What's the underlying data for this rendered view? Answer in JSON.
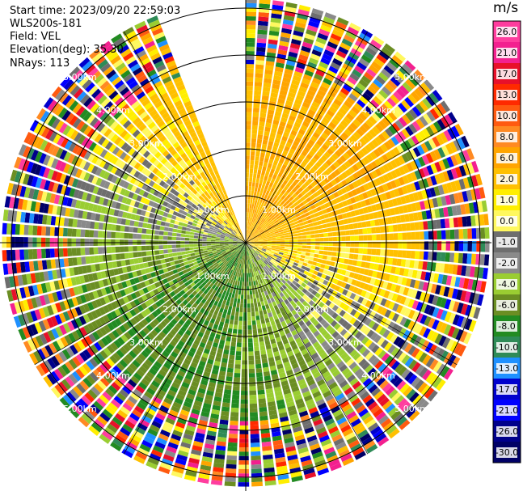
{
  "info": {
    "start_time": "Start time: 2023/09/20 22:59:03",
    "instrument": "WLS200s-181",
    "field": "Field: VEL",
    "elevation": "Elevation(deg): 35.30",
    "nrays": "NRays: 113"
  },
  "chart_data": {
    "type": "polar-ppi",
    "field": "VEL",
    "unit": "m/s",
    "range_ring_labels": [
      "1.00km",
      "2.00km",
      "3.00km",
      "4.00km",
      "5.00km"
    ],
    "ranges_km": [
      1,
      2,
      3,
      4,
      5
    ],
    "missing_sector_deg": [
      -22,
      0
    ],
    "colorbar": {
      "ticks": [
        "26.0",
        "21.0",
        "17.0",
        "13.0",
        "10.0",
        "8.0",
        "6.0",
        "2.0",
        "1.0",
        "0.0",
        "-1.0",
        "-2.0",
        "-4.0",
        "-6.0",
        "-8.0",
        "-10.0",
        "-13.0",
        "-17.0",
        "-21.0",
        "-26.0",
        "-30.0"
      ],
      "colors": [
        "#ff3d9e",
        "#f3208f",
        "#e8102a",
        "#ff2a00",
        "#ff5a10",
        "#ff8a22",
        "#ffa500",
        "#ffc000",
        "#ffee00",
        "#fff85e",
        "#6e6e6e",
        "#8a8a8a",
        "#9acd32",
        "#6b8e23",
        "#228b22",
        "#2e8b57",
        "#1e90ff",
        "#0000cd",
        "#0000ff",
        "#00008b",
        "#000066"
      ]
    }
  }
}
